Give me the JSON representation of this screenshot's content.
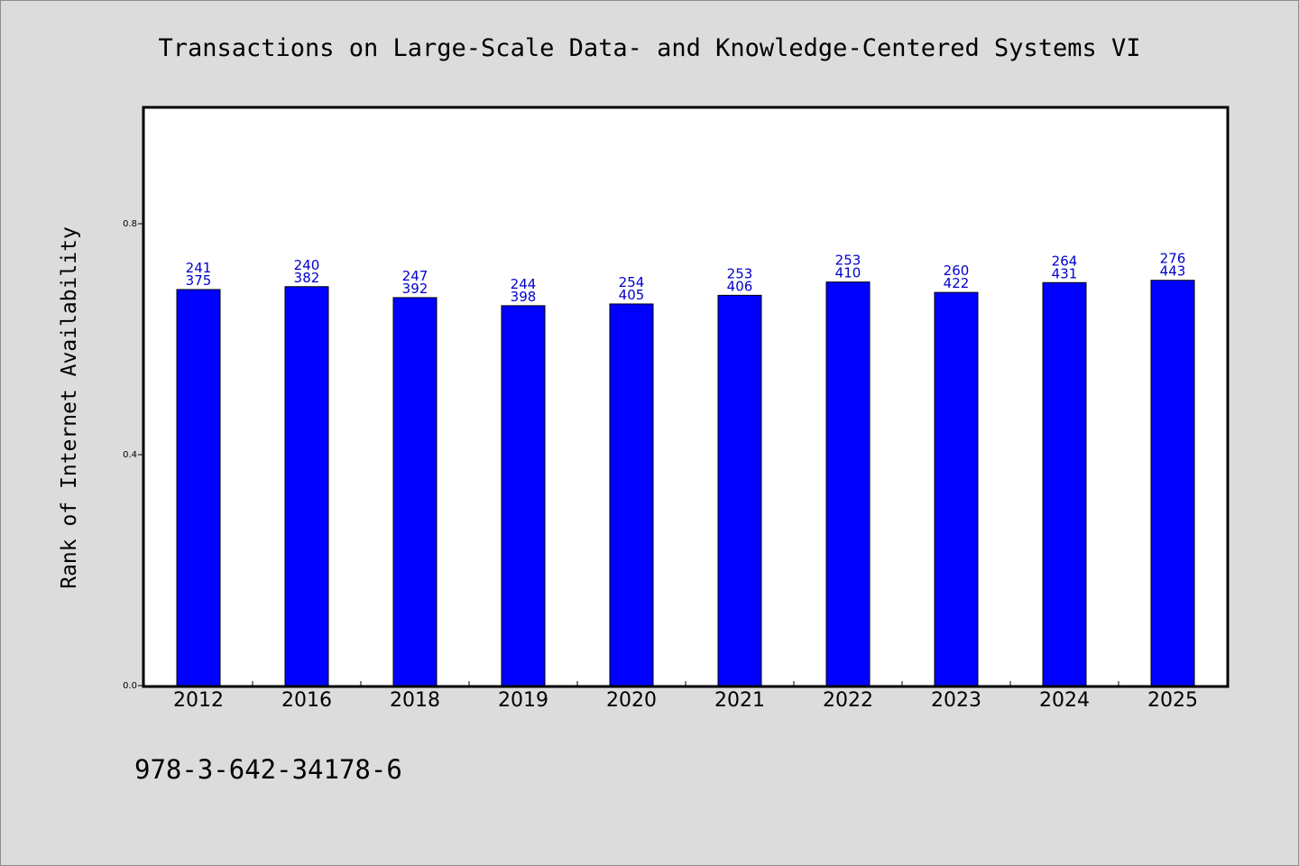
{
  "chart_data": {
    "type": "bar",
    "title": "Transactions on Large-Scale Data- and Knowledge-Centered Systems VI",
    "xlabel": "",
    "ylabel": "Rank of Internet Availability",
    "ylim": [
      0,
      1.0
    ],
    "yticks": [
      "0.0",
      "0.4",
      "0.8"
    ],
    "categories": [
      "2012",
      "2016",
      "2018",
      "2019",
      "2020",
      "2021",
      "2022",
      "2023",
      "2024",
      "2025"
    ],
    "values": [
      0.686,
      0.691,
      0.672,
      0.658,
      0.661,
      0.676,
      0.699,
      0.681,
      0.698,
      0.702
    ],
    "labels_top": [
      "241",
      "240",
      "247",
      "244",
      "254",
      "253",
      "253",
      "260",
      "264",
      "276"
    ],
    "labels_bottom": [
      "375",
      "382",
      "392",
      "398",
      "405",
      "406",
      "410",
      "422",
      "431",
      "443"
    ],
    "bar_color": "#0000ff",
    "label_color": "#0000cc",
    "grid": false,
    "legend": "none"
  },
  "footer": {
    "isbn": "978-3-642-34178-6"
  }
}
